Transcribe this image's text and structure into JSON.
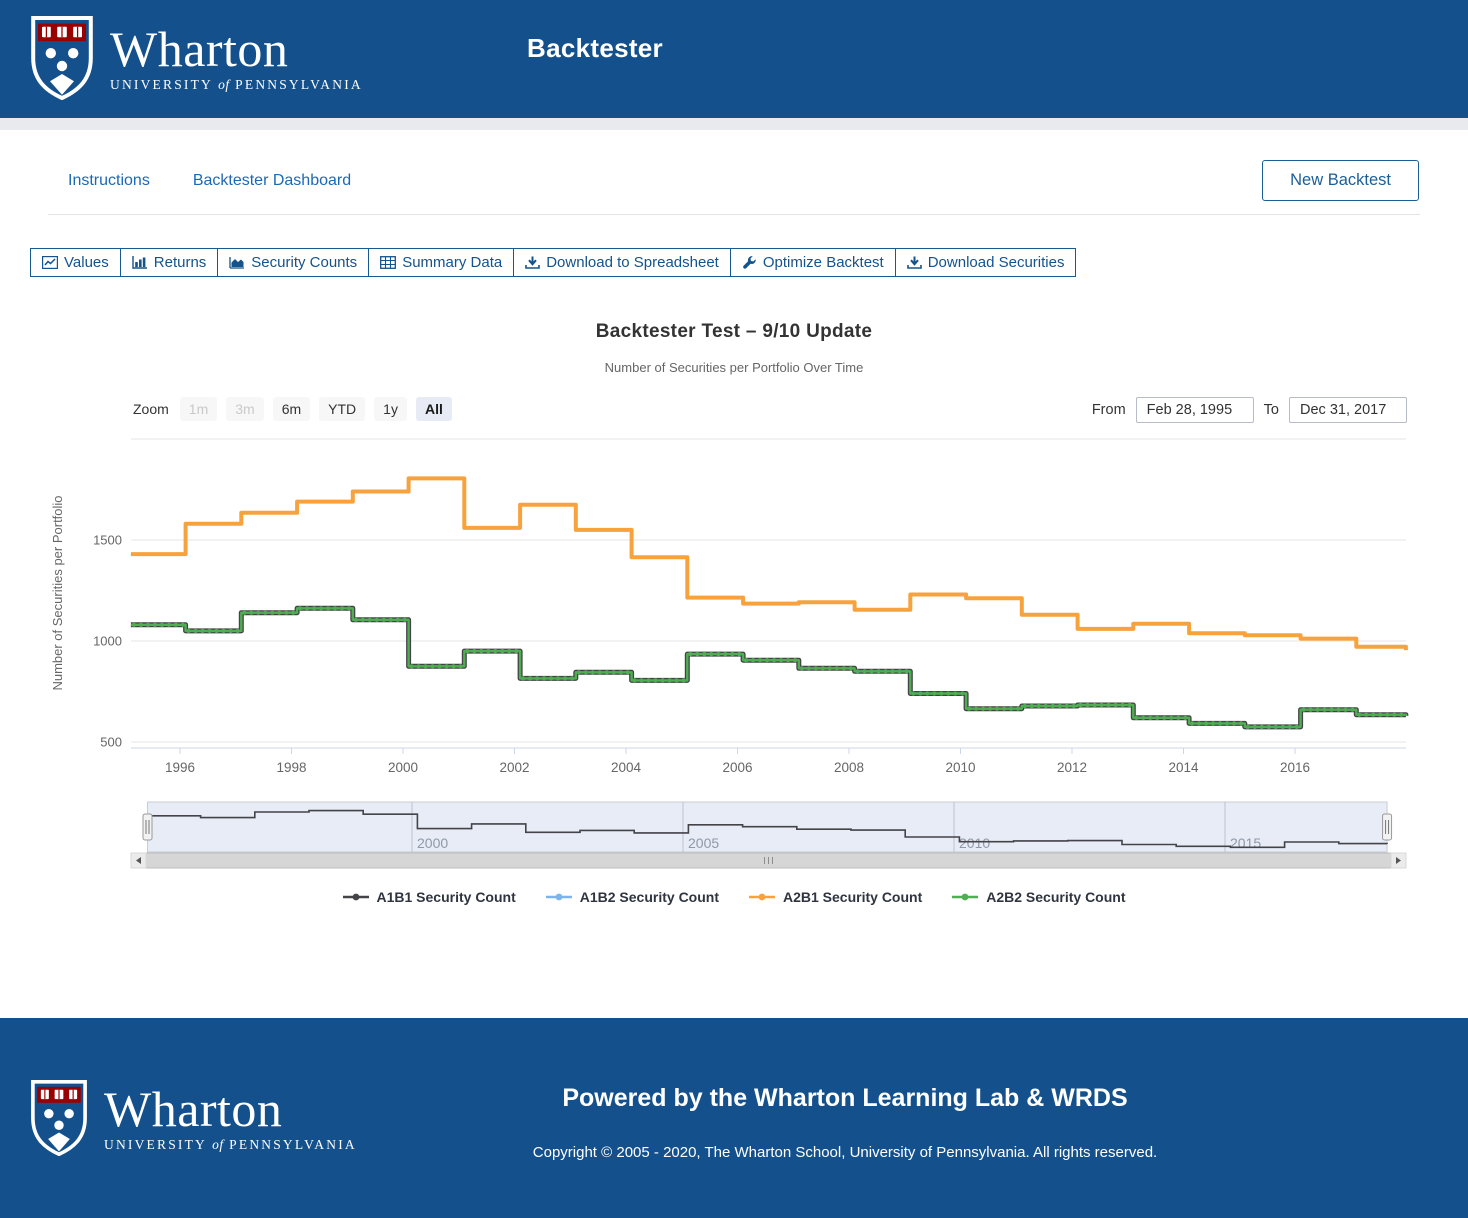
{
  "header": {
    "app_title": "Backtester",
    "brand": {
      "wordmark": "Wharton",
      "tagline_university": "University",
      "tagline_of": "of",
      "tagline_pennsylvania": "Pennsylvania"
    }
  },
  "nav": {
    "links": [
      {
        "label": "Instructions"
      },
      {
        "label": "Backtester Dashboard"
      }
    ],
    "new_backtest_label": "New Backtest"
  },
  "toolbar": {
    "tabs": [
      {
        "label": "Values",
        "icon": "line-chart-icon"
      },
      {
        "label": "Returns",
        "icon": "bar-chart-icon"
      },
      {
        "label": "Security Counts",
        "icon": "area-chart-icon"
      },
      {
        "label": "Summary Data",
        "icon": "table-icon"
      },
      {
        "label": "Download to Spreadsheet",
        "icon": "download-icon"
      },
      {
        "label": "Optimize Backtest",
        "icon": "wrench-icon"
      },
      {
        "label": "Download Securities",
        "icon": "download-icon"
      }
    ]
  },
  "chart": {
    "title": "Backtester Test – 9/10 Update",
    "subtitle": "Number of Securities per Portfolio Over Time",
    "zoom_label": "Zoom",
    "zoom_buttons": [
      {
        "label": "1m",
        "state": "disabled"
      },
      {
        "label": "3m",
        "state": "disabled"
      },
      {
        "label": "6m",
        "state": "normal"
      },
      {
        "label": "YTD",
        "state": "normal"
      },
      {
        "label": "1y",
        "state": "normal"
      },
      {
        "label": "All",
        "state": "selected"
      }
    ],
    "from_label": "From",
    "from_value": "Feb 28, 1995",
    "to_label": "To",
    "to_value": "Dec 31, 2017"
  },
  "chart_data": {
    "type": "line",
    "step": true,
    "title": "Backtester Test – 9/10 Update",
    "subtitle": "Number of Securities per Portfolio Over Time",
    "xlabel": "",
    "ylabel": "Number of Securities per Portfolio",
    "xlim": [
      1995.12,
      2017.99
    ],
    "ylim": [
      450,
      2000
    ],
    "x_ticks": [
      1996,
      1998,
      2000,
      2002,
      2004,
      2006,
      2008,
      2010,
      2012,
      2014,
      2016
    ],
    "y_ticks": [
      500,
      1000,
      1500
    ],
    "grid": "horizontal",
    "legend_position": "bottom",
    "x_steps": [
      1995.12,
      1996.1,
      1997.1,
      1998.1,
      1999.1,
      2000.1,
      2001.1,
      2002.1,
      2003.1,
      2004.1,
      2005.1,
      2006.1,
      2007.1,
      2008.1,
      2009.1,
      2010.1,
      2011.1,
      2012.1,
      2013.1,
      2014.1,
      2015.1,
      2016.1,
      2017.1,
      2017.99
    ],
    "series": [
      {
        "name": "A1B1 Security Count",
        "color": "#434348",
        "values": [
          1080,
          1050,
          1140,
          1162,
          1105,
          875,
          950,
          815,
          845,
          805,
          935,
          905,
          865,
          850,
          740,
          665,
          678,
          683,
          620,
          592,
          575,
          660,
          635,
          630
        ]
      },
      {
        "name": "A1B2 Security Count",
        "color": "#7cb5ec",
        "values": [
          1430,
          1580,
          1635,
          1690,
          1740,
          1805,
          1560,
          1675,
          1550,
          1415,
          1215,
          1185,
          1192,
          1155,
          1230,
          1212,
          1130,
          1060,
          1085,
          1038,
          1028,
          1012,
          972,
          955
        ]
      },
      {
        "name": "A2B1 Security Count",
        "color": "#f7a23c",
        "values": [
          1430,
          1580,
          1635,
          1690,
          1740,
          1805,
          1560,
          1675,
          1550,
          1415,
          1215,
          1185,
          1192,
          1155,
          1230,
          1212,
          1130,
          1060,
          1085,
          1038,
          1028,
          1012,
          972,
          955
        ]
      },
      {
        "name": "A2B2 Security Count",
        "color": "#4fae52",
        "values": [
          1080,
          1050,
          1140,
          1162,
          1105,
          875,
          950,
          815,
          845,
          805,
          935,
          905,
          865,
          850,
          740,
          665,
          678,
          683,
          620,
          592,
          575,
          660,
          635,
          630
        ]
      }
    ],
    "navigator": {
      "x_ticks": [
        2000,
        2005,
        2010,
        2015
      ],
      "series": "A1B1 Security Count"
    }
  },
  "colors": {
    "header_bg": "#14518C",
    "link_blue": "#1b69b6",
    "tab_blue": "#14538c",
    "grid_line": "#e6e6e6",
    "axis_line": "#ccd6eb",
    "axis_text": "#666666",
    "navigator_mask": "#e7ecf6"
  },
  "footer": {
    "powered_by": "Powered by the Wharton Learning Lab & WRDS",
    "copyright": "Copyright © 2005 - 2020, The Wharton School, University of Pennsylvania. All rights reserved."
  }
}
